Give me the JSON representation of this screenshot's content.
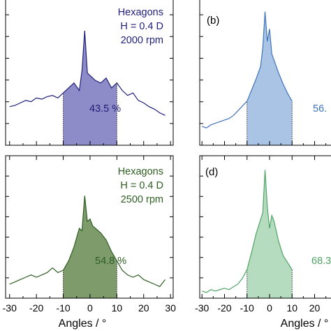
{
  "figure": {
    "xlabel": "Angles / °",
    "xticks": [
      -30,
      -20,
      -10,
      0,
      10,
      20,
      30
    ]
  },
  "chart_data": [
    {
      "type": "area",
      "panel": "(a)",
      "panel_label_visible": false,
      "color": "#1f1f7a",
      "fill": "#8e8bc9",
      "xlim": [
        -31,
        31
      ],
      "annotation_lines": [
        "Hexagons",
        "H = 0.4 D",
        "2000 rpm"
      ],
      "percent_label": "43.5 %",
      "shaded_range": [
        -10,
        10
      ],
      "x": [
        -30,
        -28,
        -26,
        -24,
        -22,
        -20,
        -18,
        -16,
        -14,
        -12,
        -10,
        -8,
        -6,
        -4,
        -3,
        -2,
        -1,
        0,
        1,
        2,
        4,
        6,
        8,
        10,
        12,
        14,
        16,
        18,
        20,
        22,
        24,
        26,
        28
      ],
      "y": [
        1.55,
        1.6,
        1.7,
        1.8,
        1.75,
        1.9,
        1.85,
        1.95,
        2.0,
        1.9,
        2.1,
        2.3,
        2.5,
        2.2,
        3.0,
        4.6,
        2.9,
        2.8,
        2.7,
        2.6,
        2.5,
        2.7,
        2.3,
        2.5,
        2.2,
        2.0,
        2.1,
        1.8,
        1.7,
        1.55,
        1.45,
        1.3,
        1.2
      ]
    },
    {
      "type": "area",
      "panel": "(b)",
      "panel_label_visible": true,
      "color": "#3f74b8",
      "fill": "#a9c4e4",
      "xlim": [
        -31,
        31
      ],
      "annotation_lines": [],
      "percent_label": "56.",
      "shaded_range": [
        -10,
        10
      ],
      "x": [
        -30,
        -28,
        -26,
        -24,
        -22,
        -20,
        -18,
        -16,
        -14,
        -12,
        -10,
        -8,
        -6,
        -4,
        -3,
        -2,
        -1,
        0,
        1,
        2,
        4,
        6,
        8,
        10
      ],
      "y": [
        1.2,
        1.1,
        1.3,
        1.4,
        1.5,
        1.6,
        1.7,
        1.9,
        2.2,
        2.5,
        2.8,
        3.5,
        4.2,
        5.0,
        6.2,
        8.5,
        6.6,
        7.4,
        5.8,
        5.4,
        4.6,
        3.9,
        3.3,
        2.8
      ]
    },
    {
      "type": "area",
      "panel": "(c)",
      "panel_label_visible": false,
      "color": "#2e5d22",
      "fill": "#7e9b6c",
      "xlim": [
        -31,
        31
      ],
      "annotation_lines": [
        "Hexagons",
        "H = 0.4 D",
        "2500 rpm"
      ],
      "percent_label": "54.8 %",
      "shaded_range": [
        -10,
        10
      ],
      "x": [
        -30,
        -28,
        -26,
        -24,
        -22,
        -20,
        -18,
        -16,
        -14,
        -12,
        -10,
        -8,
        -6,
        -4,
        -3,
        -2,
        -1,
        0,
        1,
        2,
        4,
        6,
        8,
        10,
        12,
        14,
        16,
        18,
        20,
        22,
        24,
        26,
        28
      ],
      "y": [
        0.6,
        0.7,
        0.8,
        0.9,
        1.0,
        0.9,
        1.0,
        1.1,
        1.3,
        1.1,
        1.2,
        1.6,
        2.2,
        3.0,
        2.9,
        4.4,
        3.3,
        3.4,
        3.1,
        3.0,
        2.8,
        2.5,
        2.0,
        1.6,
        1.2,
        1.0,
        0.9,
        1.0,
        0.8,
        0.7,
        0.6,
        0.5,
        0.8
      ]
    },
    {
      "type": "area",
      "panel": "(d)",
      "panel_label_visible": true,
      "color": "#4fa366",
      "fill": "#b6dcbf",
      "xlim": [
        -31,
        31
      ],
      "annotation_lines": [],
      "percent_label": "68.3",
      "shaded_range": [
        -10,
        10
      ],
      "x": [
        -30,
        -28,
        -26,
        -24,
        -22,
        -20,
        -18,
        -16,
        -14,
        -12,
        -10,
        -8,
        -6,
        -4,
        -3,
        -2,
        -1,
        0,
        1,
        2,
        4,
        6,
        8,
        10
      ],
      "y": [
        0.5,
        0.4,
        0.6,
        0.5,
        0.6,
        0.7,
        0.6,
        0.8,
        1.0,
        1.4,
        2.0,
        3.2,
        4.5,
        5.5,
        6.0,
        9.0,
        6.4,
        4.9,
        5.8,
        5.4,
        4.0,
        3.0,
        2.5,
        2.0
      ]
    }
  ]
}
